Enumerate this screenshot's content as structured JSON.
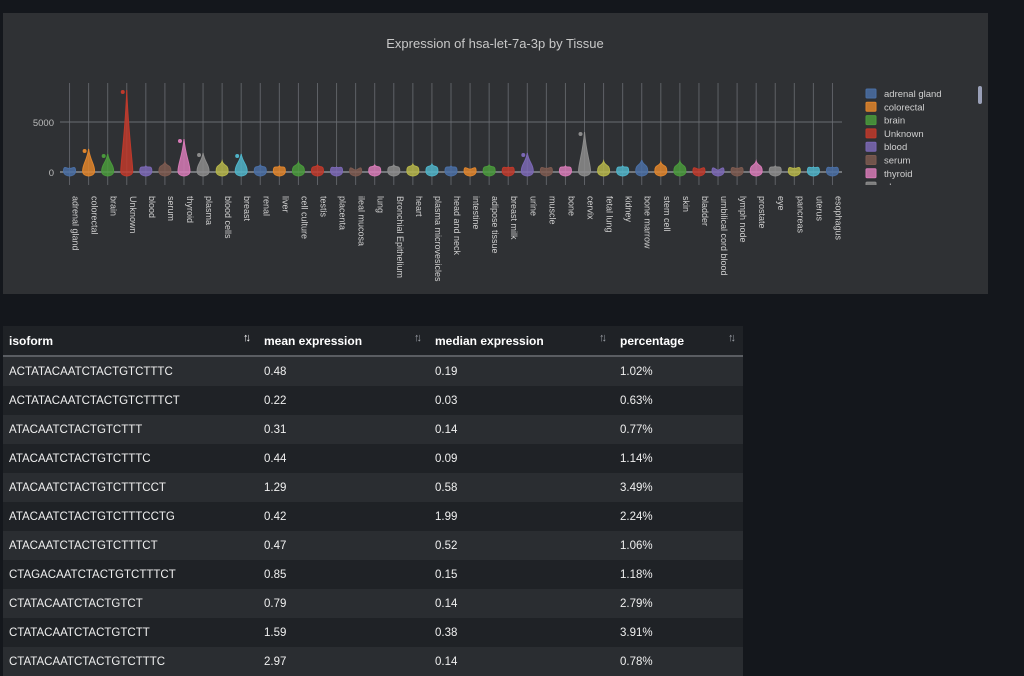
{
  "chart_data": {
    "type": "violin",
    "title": "Expression of hsa-let-7a-3p by Tissue",
    "yticks": [
      0,
      5000
    ],
    "ylim": [
      -300,
      8500
    ],
    "categories": [
      "adrenal gland",
      "colorectal",
      "brain",
      "Unknown",
      "blood",
      "serum",
      "thyroid",
      "plasma",
      "blood cells",
      "breast",
      "renal",
      "liver",
      "cell culture",
      "testis",
      "placenta",
      "ileal mucosa",
      "lung",
      "Bronchial Epithelium",
      "heart",
      "plasma microvesicles",
      "head and neck",
      "intestine",
      "adipose tissue",
      "breast milk",
      "urine",
      "muscle",
      "bone",
      "cervix",
      "fetal lung",
      "kidney",
      "bone marrow",
      "stem cell",
      "skin",
      "bladder",
      "umbilical cord blood",
      "lymph node",
      "prostate",
      "eye",
      "pancreas",
      "uterus",
      "esophagus"
    ],
    "colors": [
      "#4a6fa5",
      "#e0852c",
      "#4a9a3c",
      "#c0392b",
      "#7b68b5",
      "#7d5a50",
      "#d67ab6",
      "#8c8c8c",
      "#b5b54a",
      "#4fb3c8",
      "#4a6fa5",
      "#e0852c",
      "#4a9a3c",
      "#c0392b",
      "#7b68b5",
      "#7d5a50",
      "#d67ab6",
      "#8c8c8c",
      "#b5b54a",
      "#4fb3c8",
      "#4a6fa5",
      "#e0852c",
      "#4a9a3c",
      "#c0392b",
      "#7b68b5",
      "#7d5a50",
      "#d67ab6",
      "#8c8c8c",
      "#b5b54a",
      "#4fb3c8",
      "#4a6fa5",
      "#e0852c",
      "#4a9a3c",
      "#c0392b",
      "#7b68b5",
      "#7d5a50",
      "#d67ab6",
      "#8c8c8c",
      "#b5b54a",
      "#4fb3c8",
      "#4a6fa5"
    ],
    "max_values": [
      400,
      2300,
      1800,
      8200,
      600,
      1000,
      3300,
      1900,
      1100,
      1800,
      700,
      600,
      1000,
      700,
      500,
      200,
      700,
      700,
      800,
      800,
      600,
      300,
      700,
      500,
      1900,
      400,
      600,
      4000,
      1100,
      600,
      1200,
      1000,
      1100,
      300,
      200,
      400,
      1100,
      600,
      400,
      500,
      500
    ],
    "legend_visible": [
      "adrenal gland",
      "colorectal",
      "brain",
      "Unknown",
      "blood",
      "serum",
      "thyroid",
      "plasma"
    ],
    "legend_placement": "right"
  },
  "table": {
    "columns": [
      {
        "label": "isoform",
        "sort": "asc"
      },
      {
        "label": "mean expression",
        "sort": "none"
      },
      {
        "label": "median expression",
        "sort": "none"
      },
      {
        "label": "percentage",
        "sort": "none"
      }
    ],
    "rows": [
      [
        "ACTATACAATCTACTGTCTTTC",
        "0.48",
        "0.19",
        "1.02%"
      ],
      [
        "ACTATACAATCTACTGTCTTTCT",
        "0.22",
        "0.03",
        "0.63%"
      ],
      [
        "ATACAATCTACTGTCTTT",
        "0.31",
        "0.14",
        "0.77%"
      ],
      [
        "ATACAATCTACTGTCTTTC",
        "0.44",
        "0.09",
        "1.14%"
      ],
      [
        "ATACAATCTACTGTCTTTCCT",
        "1.29",
        "0.58",
        "3.49%"
      ],
      [
        "ATACAATCTACTGTCTTTCCTG",
        "0.42",
        "1.99",
        "2.24%"
      ],
      [
        "ATACAATCTACTGTCTTTCT",
        "0.47",
        "0.52",
        "1.06%"
      ],
      [
        "CTAGACAATCTACTGTCTTTCT",
        "0.85",
        "0.15",
        "1.18%"
      ],
      [
        "CTATACAATCTACTGTCT",
        "0.79",
        "0.14",
        "2.79%"
      ],
      [
        "CTATACAATCTACTGTCTT",
        "1.59",
        "0.38",
        "3.91%"
      ],
      [
        "CTATACAATCTACTGTCTTTC",
        "2.97",
        "0.14",
        "0.78%"
      ]
    ]
  }
}
